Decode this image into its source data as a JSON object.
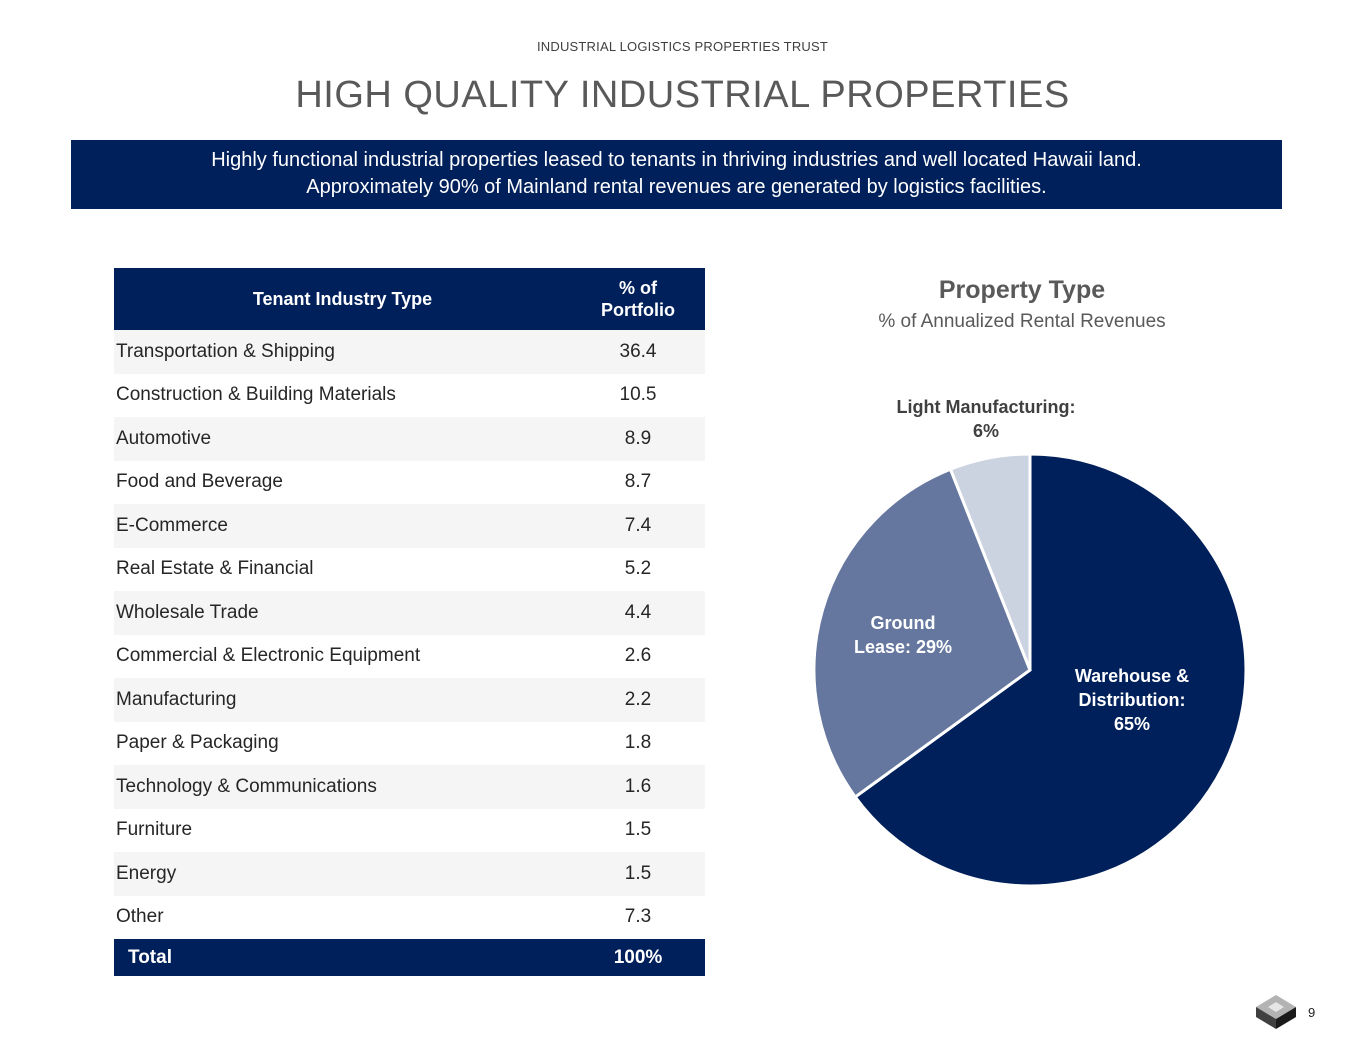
{
  "header": {
    "company": "INDUSTRIAL LOGISTICS PROPERTIES TRUST",
    "title": "HIGH QUALITY INDUSTRIAL PROPERTIES"
  },
  "banner": {
    "line1": "Highly functional industrial properties leased to tenants in thriving industries and well located Hawaii land.",
    "line2": "Approximately 90% of Mainland rental revenues are generated by logistics facilities."
  },
  "table": {
    "col1": "Tenant Industry Type",
    "col2_line1": "% of",
    "col2_line2": "Portfolio",
    "rows": [
      {
        "name": "Transportation & Shipping",
        "value": "36.4"
      },
      {
        "name": "Construction & Building Materials",
        "value": "10.5"
      },
      {
        "name": "Automotive",
        "value": "8.9"
      },
      {
        "name": "Food and Beverage",
        "value": "8.7"
      },
      {
        "name": "E-Commerce",
        "value": "7.4"
      },
      {
        "name": "Real Estate & Financial",
        "value": "5.2"
      },
      {
        "name": "Wholesale Trade",
        "value": "4.4"
      },
      {
        "name": "Commercial & Electronic Equipment",
        "value": "2.6"
      },
      {
        "name": "Manufacturing",
        "value": "2.2"
      },
      {
        "name": "Paper & Packaging",
        "value": "1.8"
      },
      {
        "name": "Technology & Communications",
        "value": "1.6"
      },
      {
        "name": "Furniture",
        "value": "1.5"
      },
      {
        "name": "Energy",
        "value": "1.5"
      },
      {
        "name": "Other",
        "value": "7.3"
      }
    ],
    "total_label": "Total",
    "total_value": "100%"
  },
  "chart_data": {
    "type": "pie",
    "title": "Property Type",
    "subtitle": "% of Annualized Rental Revenues",
    "slices": [
      {
        "label": "Warehouse & Distribution",
        "value": 65,
        "color": "#00205b",
        "label_lines": [
          "Warehouse &",
          "Distribution:",
          "65%"
        ]
      },
      {
        "label": "Ground Lease",
        "value": 29,
        "color": "#65779e",
        "label_lines": [
          "Ground",
          "Lease: 29%"
        ]
      },
      {
        "label": "Light Manufacturing",
        "value": 6,
        "color": "#ccd3e0",
        "label_lines": [
          "Light Manufacturing:",
          "6%"
        ]
      }
    ]
  },
  "footer": {
    "page_number": "9"
  }
}
